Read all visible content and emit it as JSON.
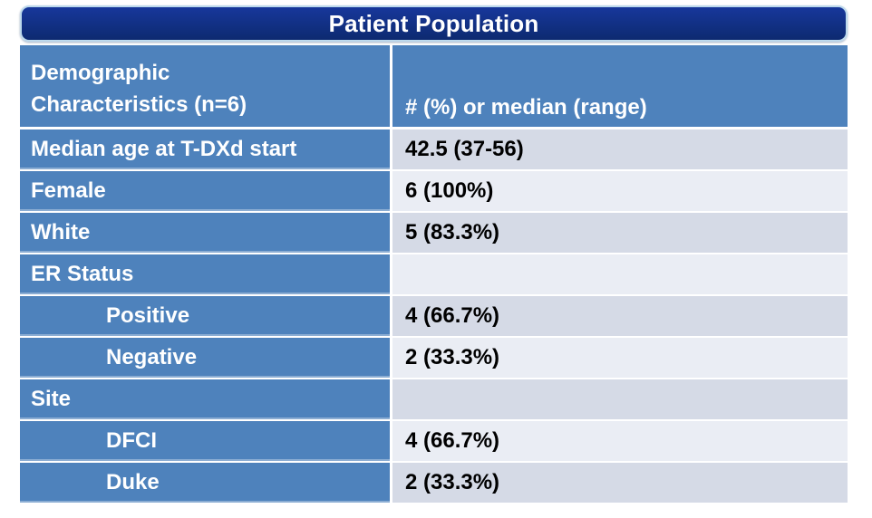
{
  "chart_data": {
    "type": "table",
    "title": "Patient Population",
    "columns": [
      "Demographic Characteristics (n=6)",
      "# (%) or median (range)"
    ],
    "rows": [
      {
        "label": "Median age at T-DXd start",
        "value": "42.5 (37-56)",
        "indent": false
      },
      {
        "label": "Female",
        "value": "6 (100%)",
        "indent": false
      },
      {
        "label": "White",
        "value": "5 (83.3%)",
        "indent": false
      },
      {
        "label": "ER Status",
        "value": "",
        "indent": false
      },
      {
        "label": "Positive",
        "value": "4 (66.7%)",
        "indent": true
      },
      {
        "label": "Negative",
        "value": "2 (33.3%)",
        "indent": true
      },
      {
        "label": "Site",
        "value": "",
        "indent": false
      },
      {
        "label": "DFCI",
        "value": "4 (66.7%)",
        "indent": true
      },
      {
        "label": "Duke",
        "value": "2 (33.3%)",
        "indent": true
      }
    ]
  },
  "header": {
    "col1_line1": "Demographic",
    "col1_line2": "Characteristics (n=6)",
    "col2": "# (%) or median (range)"
  },
  "colors": {
    "title_bar_top": "#17379b",
    "title_bar_bottom": "#0d2a70",
    "title_bar_border": "#bcd9ec",
    "title_text": "#ffffff",
    "col_blue": "#4e82bc",
    "label_text": "#ffffff",
    "value_dark": "#d5dae6",
    "value_light": "#eaedf4",
    "value_text": "#000000"
  }
}
